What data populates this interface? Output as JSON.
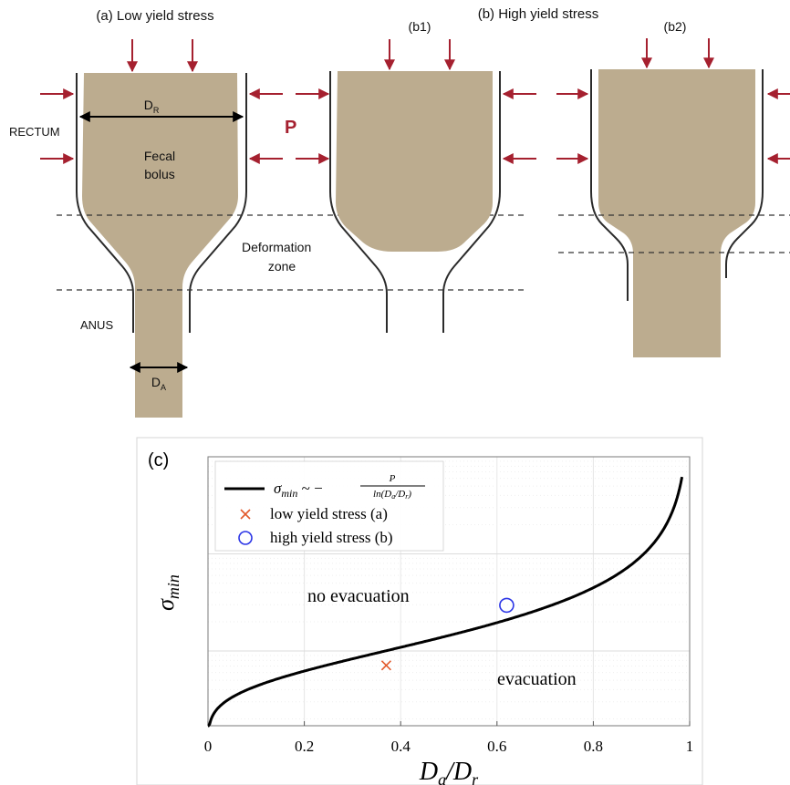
{
  "diagram": {
    "panel_a": {
      "title": "(a) Low yield stress",
      "rectum_label": "RECTUM",
      "anus_label": "ANUS",
      "bolus_label_line1": "Fecal",
      "bolus_label_line2": "bolus",
      "pressure_label": "P",
      "rectum_diameter_main": "D",
      "rectum_diameter_sub": "R",
      "anus_diameter_main": "D",
      "anus_diameter_sub": "A",
      "deformation_label_line1": "Deformation",
      "deformation_label_line2": "zone"
    },
    "panel_b": {
      "title": "(b) High yield stress",
      "b1_label": "(b1)",
      "b2_label": "(b2)"
    },
    "colors": {
      "bolus": "#bcac8f",
      "arrow": "#a5202f",
      "wall": "#2b2b2b",
      "curve": "#000000",
      "low_marker": "#e2592b",
      "high_marker": "#2b35e6"
    }
  },
  "chart_data": {
    "type": "line",
    "panel_label": "(c)",
    "xlabel": "D_a/D_r",
    "ylabel": "σ_min",
    "xlim": [
      0,
      1
    ],
    "xticks": [
      "0",
      "0.2",
      "0.4",
      "0.6",
      "0.8",
      "1"
    ],
    "y_scale": "log",
    "grid": true,
    "legend_position": "top-left",
    "legend": {
      "curve_label": "σ_min ~ − P / ln(D_a/D_r)",
      "low_label": "low yield stress (a)",
      "high_label": "high yield stress (b)"
    },
    "series": [
      {
        "name": "σ_min ~ − P / ln(D_a/D_r)",
        "function": "-P/ln(x)"
      },
      {
        "name": "low yield stress (a)",
        "marker": "x",
        "x": [
          0.37
        ]
      },
      {
        "name": "high yield stress (b)",
        "marker": "o",
        "x": [
          0.62
        ]
      }
    ],
    "annotations": [
      "no evacuation",
      "evacuation"
    ]
  }
}
